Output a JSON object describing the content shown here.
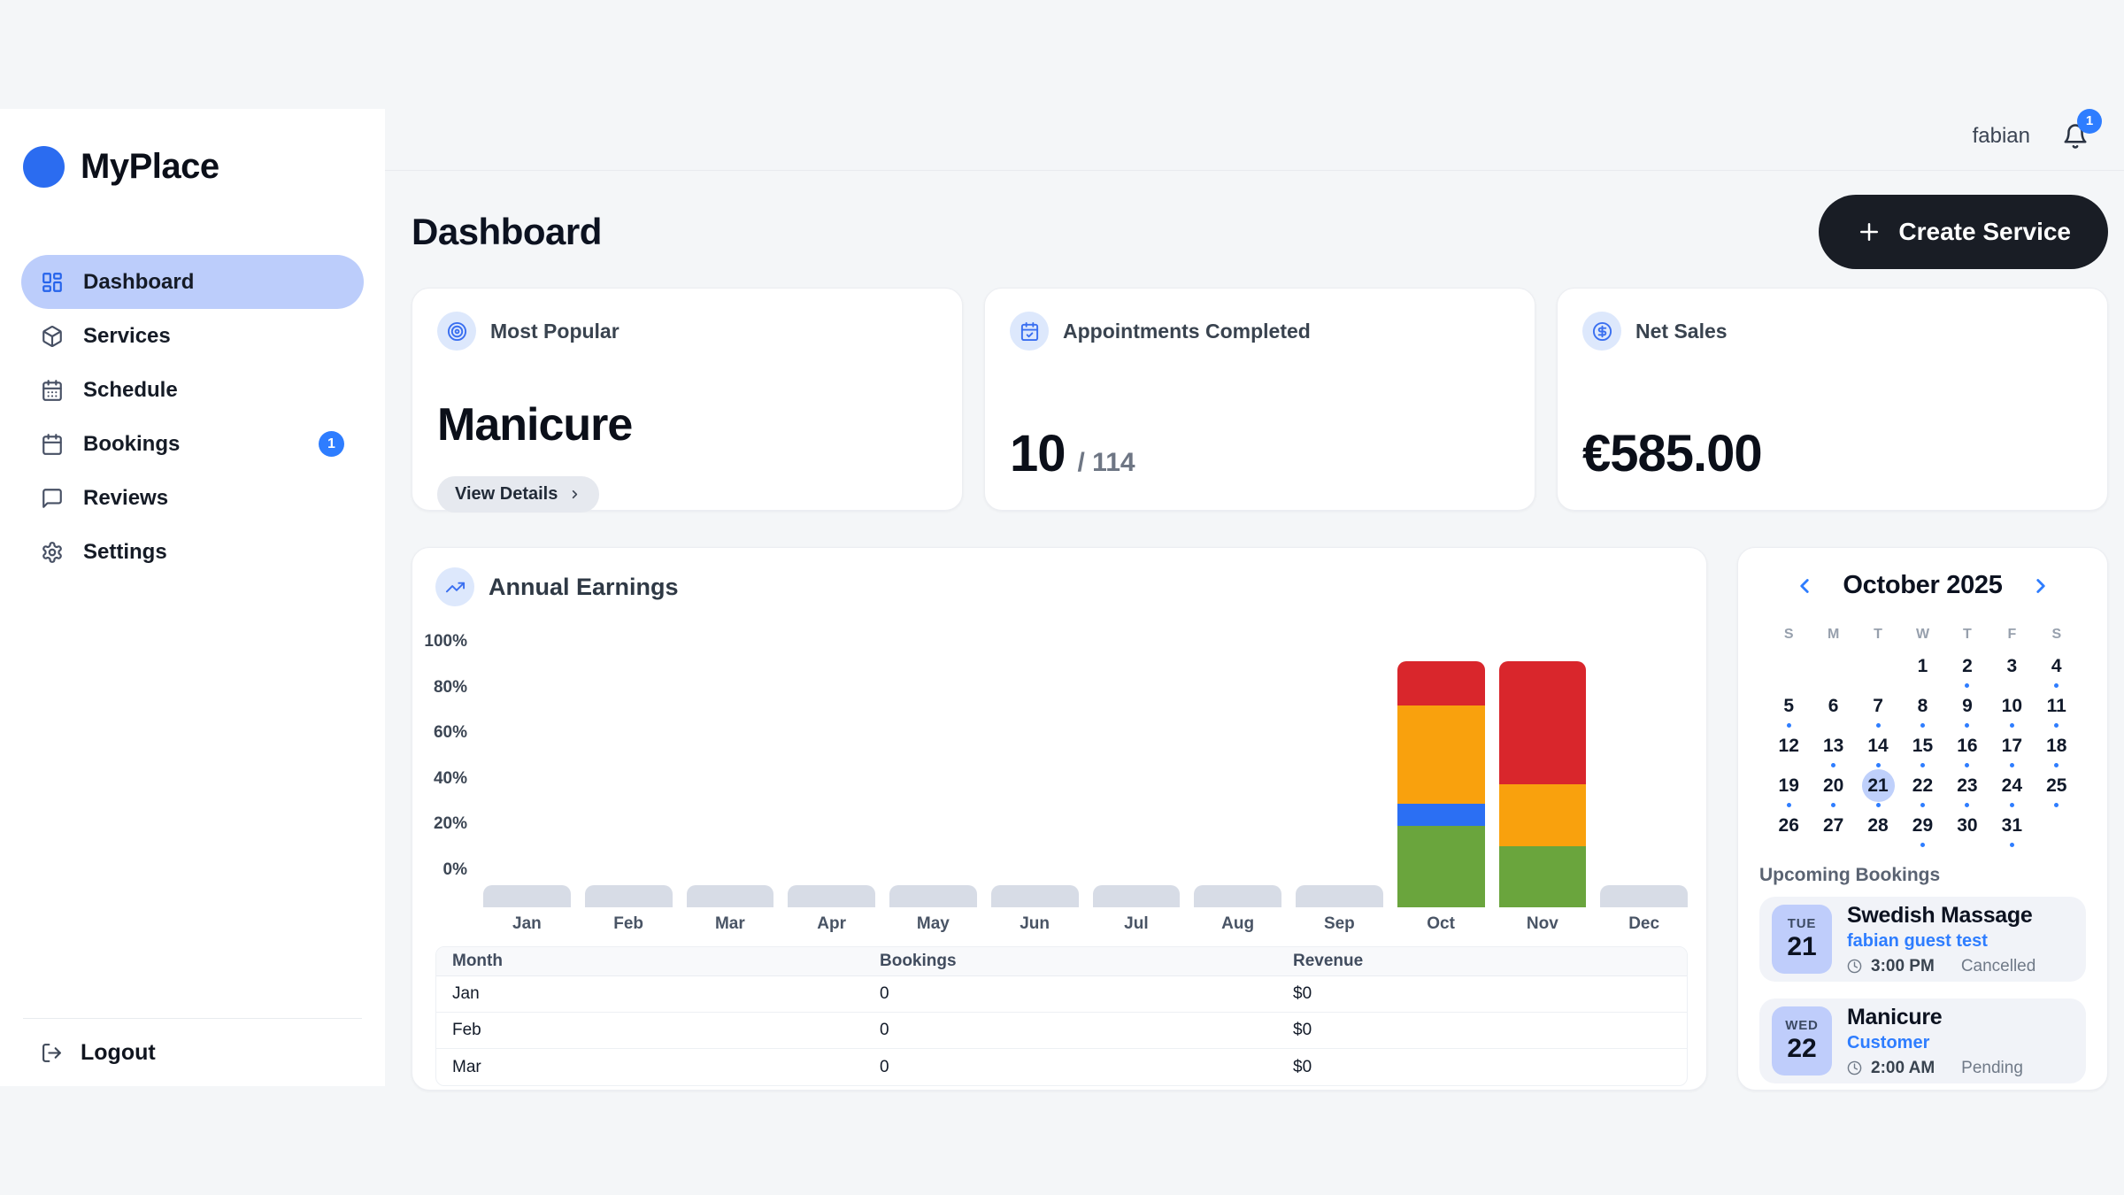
{
  "brand": {
    "name": "MyPlace"
  },
  "topbar": {
    "username": "fabian",
    "notification_count": "1"
  },
  "sidebar": {
    "items": [
      {
        "label": "Dashboard",
        "active": true
      },
      {
        "label": "Services"
      },
      {
        "label": "Schedule"
      },
      {
        "label": "Bookings",
        "badge": "1"
      },
      {
        "label": "Reviews"
      },
      {
        "label": "Settings"
      }
    ],
    "logout_label": "Logout"
  },
  "page": {
    "title": "Dashboard",
    "create_service_label": "Create Service"
  },
  "stat_cards": {
    "most_popular": {
      "label": "Most Popular",
      "value": "Manicure",
      "action_label": "View Details"
    },
    "appointments": {
      "label": "Appointments Completed",
      "value": "10",
      "total": "/ 114"
    },
    "net_sales": {
      "label": "Net Sales",
      "value": "€585.00"
    }
  },
  "earnings_card": {
    "title": "Annual Earnings",
    "table": {
      "headers": [
        "Month",
        "Bookings",
        "Revenue"
      ],
      "rows": [
        {
          "month": "Jan",
          "bookings": "0",
          "revenue": "$0"
        },
        {
          "month": "Feb",
          "bookings": "0",
          "revenue": "$0"
        },
        {
          "month": "Mar",
          "bookings": "0",
          "revenue": "$0"
        }
      ]
    }
  },
  "chart_data": {
    "type": "bar",
    "variant": "stacked",
    "title": "Annual Earnings",
    "xlabel": "",
    "ylabel": "",
    "ylim": [
      0,
      100
    ],
    "grid": false,
    "legend": null,
    "y_ticks": [
      "100%",
      "80%",
      "60%",
      "40%",
      "20%",
      "0%"
    ],
    "note": "segments listed bottom-to-top as percent of each bar; months without segments show an empty gray stub",
    "columns": [
      {
        "label": "Jan",
        "segments": []
      },
      {
        "label": "Feb",
        "segments": []
      },
      {
        "label": "Mar",
        "segments": []
      },
      {
        "label": "Apr",
        "segments": []
      },
      {
        "label": "May",
        "segments": []
      },
      {
        "label": "Jun",
        "segments": []
      },
      {
        "label": "Jul",
        "segments": []
      },
      {
        "label": "Aug",
        "segments": []
      },
      {
        "label": "Sep",
        "segments": []
      },
      {
        "label": "Oct",
        "segments": [
          {
            "color": "#6aa53d",
            "pct": 33
          },
          {
            "color": "#2b6ff3",
            "pct": 9
          },
          {
            "color": "#f9a10d",
            "pct": 40
          },
          {
            "color": "#d9262c",
            "pct": 18
          }
        ]
      },
      {
        "label": "Nov",
        "segments": [
          {
            "color": "#6aa53d",
            "pct": 25
          },
          {
            "color": "#f9a10d",
            "pct": 25
          },
          {
            "color": "#d9262c",
            "pct": 50
          }
        ]
      },
      {
        "label": "Dec",
        "segments": []
      }
    ]
  },
  "calendar": {
    "title": "October 2025",
    "weekdays": [
      "S",
      "M",
      "T",
      "W",
      "T",
      "F",
      "S"
    ],
    "days": [
      {
        "n": ""
      },
      {
        "n": ""
      },
      {
        "n": ""
      },
      {
        "n": "1"
      },
      {
        "n": "2",
        "dot": true
      },
      {
        "n": "3"
      },
      {
        "n": "4",
        "dot": true
      },
      {
        "n": "5",
        "dot": true
      },
      {
        "n": "6"
      },
      {
        "n": "7",
        "dot": true
      },
      {
        "n": "8",
        "dot": true
      },
      {
        "n": "9",
        "dot": true
      },
      {
        "n": "10",
        "dot": true
      },
      {
        "n": "11",
        "dot": true
      },
      {
        "n": "12"
      },
      {
        "n": "13",
        "dot": true
      },
      {
        "n": "14",
        "dot": true
      },
      {
        "n": "15",
        "dot": true
      },
      {
        "n": "16",
        "dot": true
      },
      {
        "n": "17",
        "dot": true
      },
      {
        "n": "18",
        "dot": true
      },
      {
        "n": "19",
        "dot": true
      },
      {
        "n": "20",
        "dot": true
      },
      {
        "n": "21",
        "dot": true,
        "selected": true
      },
      {
        "n": "22",
        "dot": true
      },
      {
        "n": "23",
        "dot": true
      },
      {
        "n": "24",
        "dot": true
      },
      {
        "n": "25",
        "dot": true
      },
      {
        "n": "26"
      },
      {
        "n": "27"
      },
      {
        "n": "28"
      },
      {
        "n": "29",
        "dot": true
      },
      {
        "n": "30"
      },
      {
        "n": "31",
        "dot": true
      }
    ]
  },
  "upcoming": {
    "title": "Upcoming Bookings",
    "items": [
      {
        "dow": "TUE",
        "day": "21",
        "title": "Swedish Massage",
        "client": "fabian guest test",
        "time": "3:00 PM",
        "status": "Cancelled"
      },
      {
        "dow": "WED",
        "day": "22",
        "title": "Manicure",
        "client": "Customer",
        "time": "2:00 AM",
        "status": "Pending"
      }
    ]
  },
  "colors": {
    "accent_blue": "#2e7dff",
    "brand_blue": "#2b6cf0",
    "active_nav_bg": "#bccdfb",
    "selected_day_bg": "#bfd0fb",
    "bar_green": "#6aa53d",
    "bar_blue": "#2b6ff3",
    "bar_orange": "#f9a10d",
    "bar_red": "#d9262c",
    "empty_bar_gray": "#d7dce6",
    "create_button_bg": "#191d25"
  }
}
